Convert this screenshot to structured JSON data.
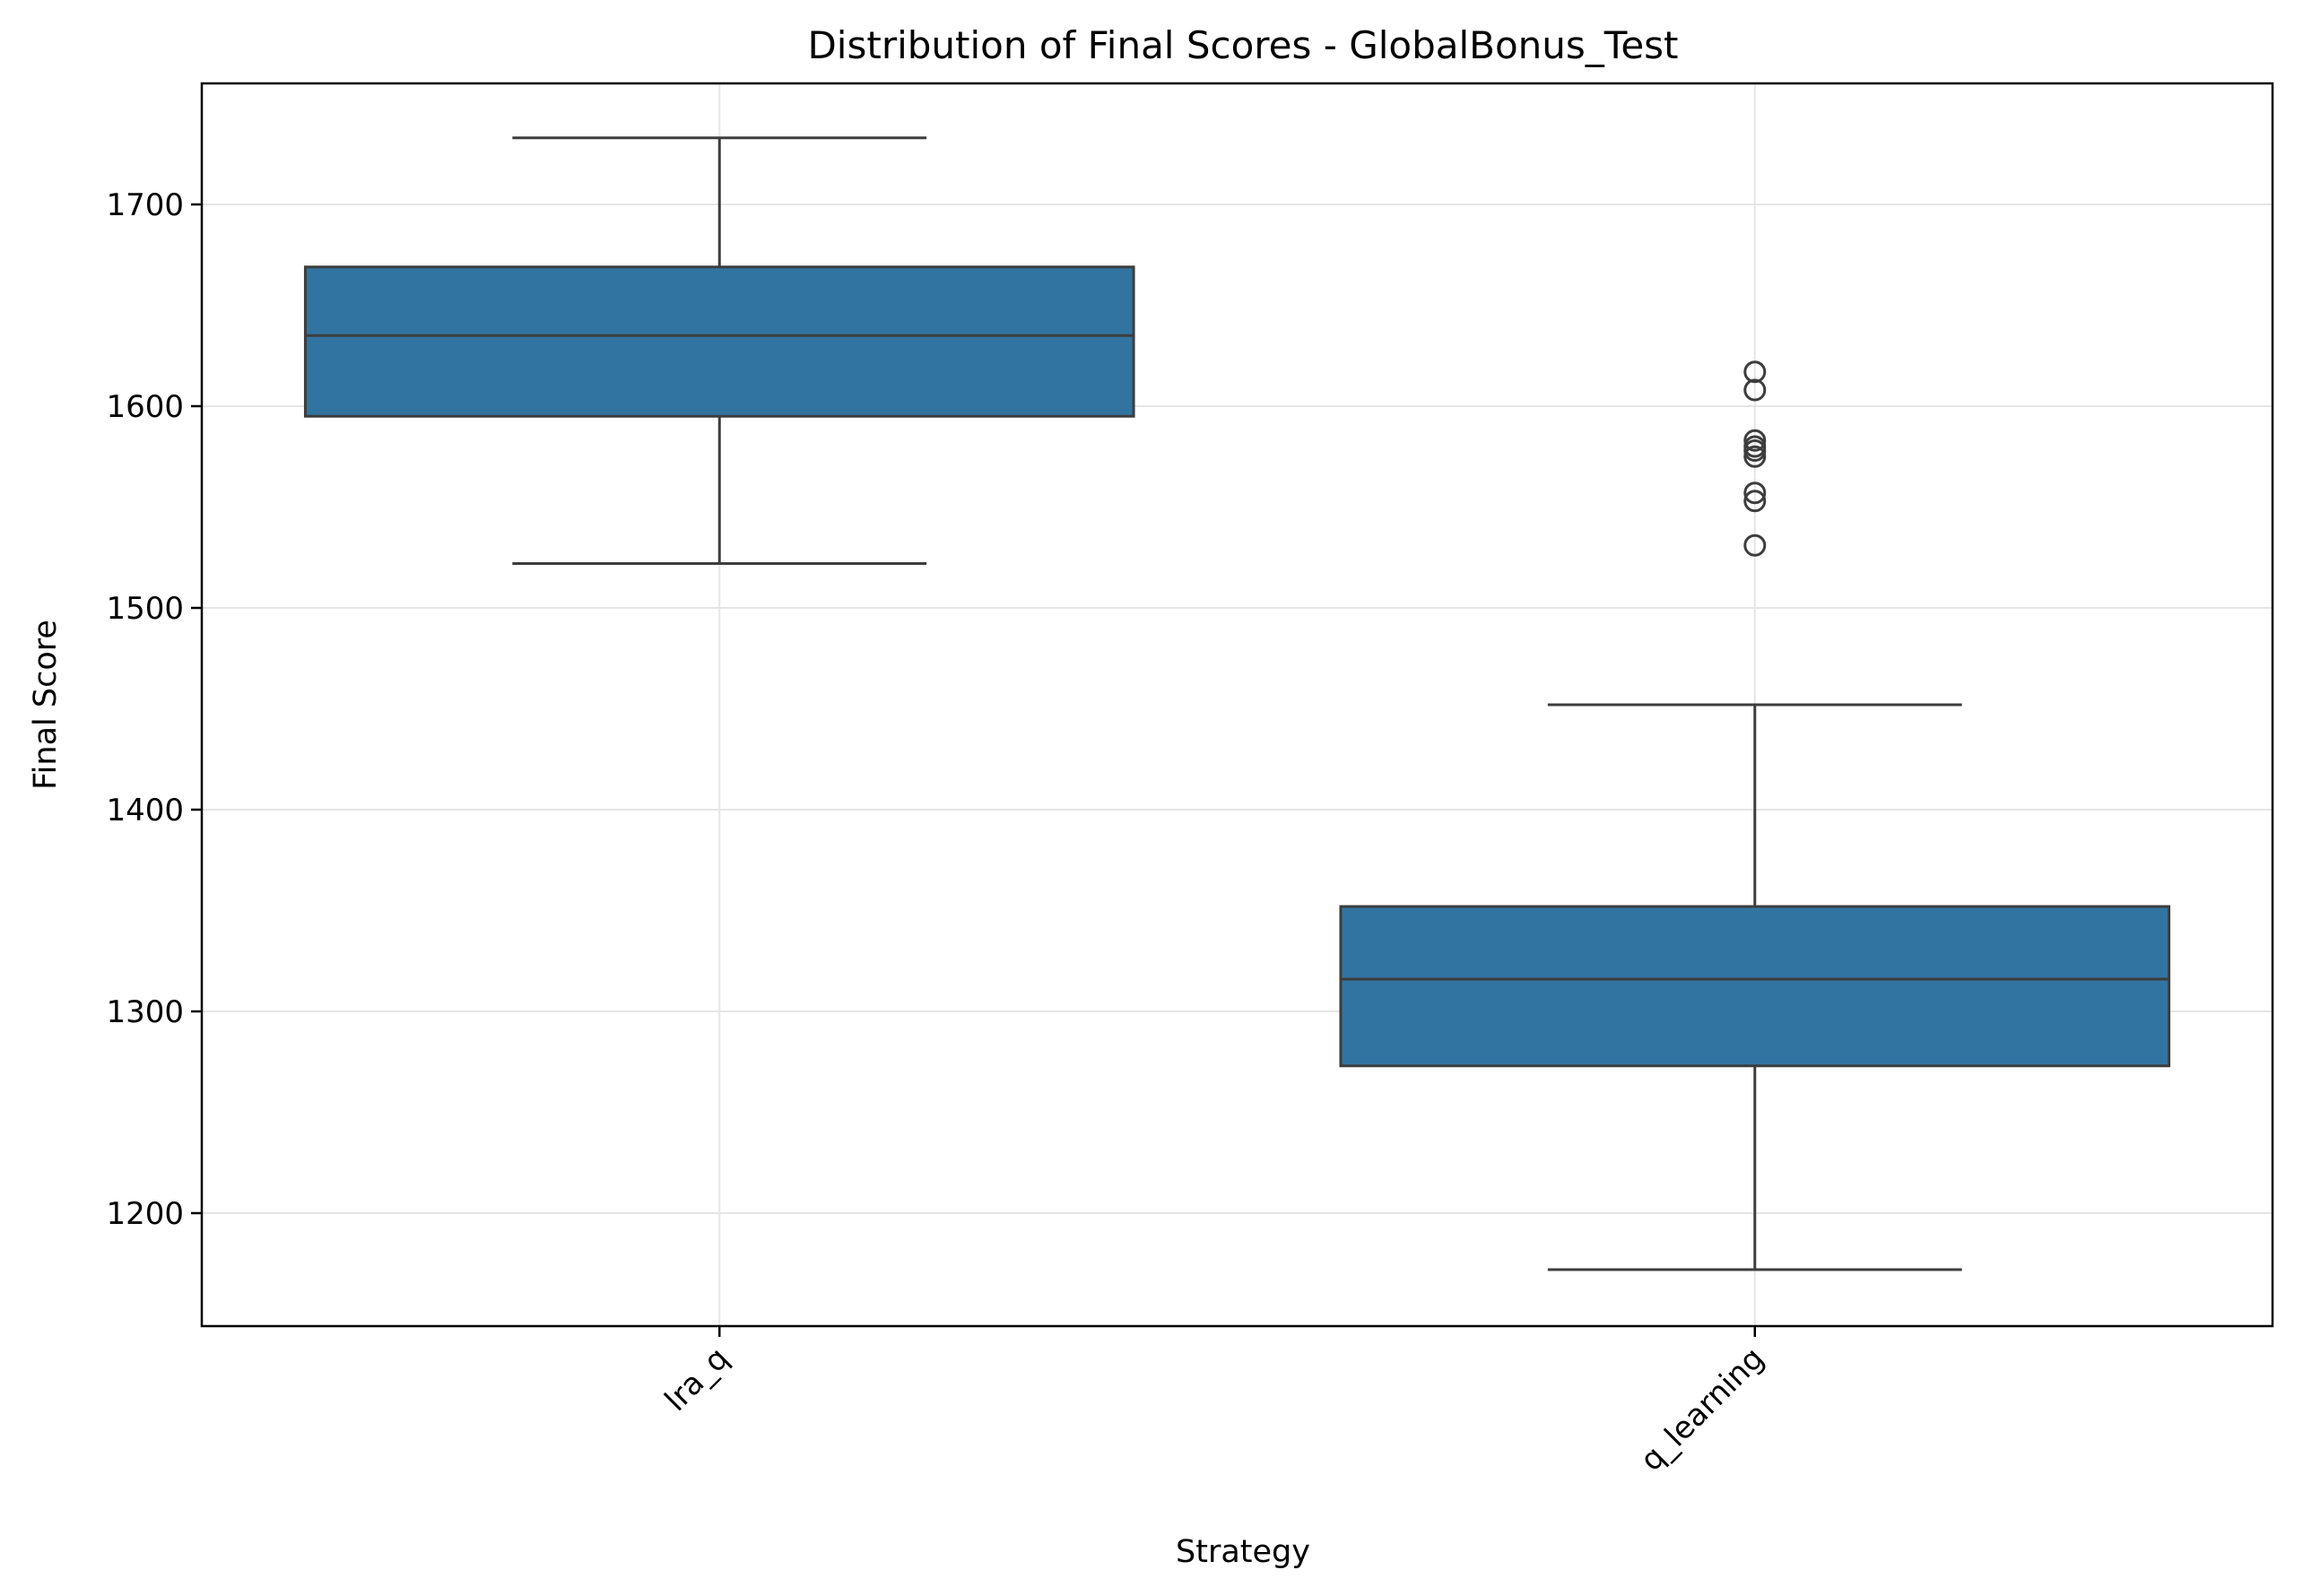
{
  "chart_data": {
    "type": "box",
    "title": "Distribution of Final Scores - GlobalBonus_Test",
    "xlabel": "Strategy",
    "ylabel": "Final Score",
    "ylim": [
      1144,
      1760
    ],
    "yticks": [
      1200,
      1300,
      1400,
      1500,
      1600,
      1700
    ],
    "grid": true,
    "box_color": "#3274a1",
    "line_color": "#3d3d3d",
    "grid_color": "#e5e5e5",
    "categories": [
      "lra_q",
      "q_learning"
    ],
    "series": [
      {
        "category": "lra_q",
        "whisker_low": 1522,
        "q1": 1595,
        "median": 1635,
        "q3": 1669,
        "whisker_high": 1733,
        "outliers": []
      },
      {
        "category": "q_learning",
        "whisker_low": 1172,
        "q1": 1273,
        "median": 1316,
        "q3": 1352,
        "whisker_high": 1452,
        "outliers": [
          1617,
          1608,
          1583,
          1580,
          1578,
          1575,
          1557,
          1553,
          1531
        ]
      }
    ]
  }
}
